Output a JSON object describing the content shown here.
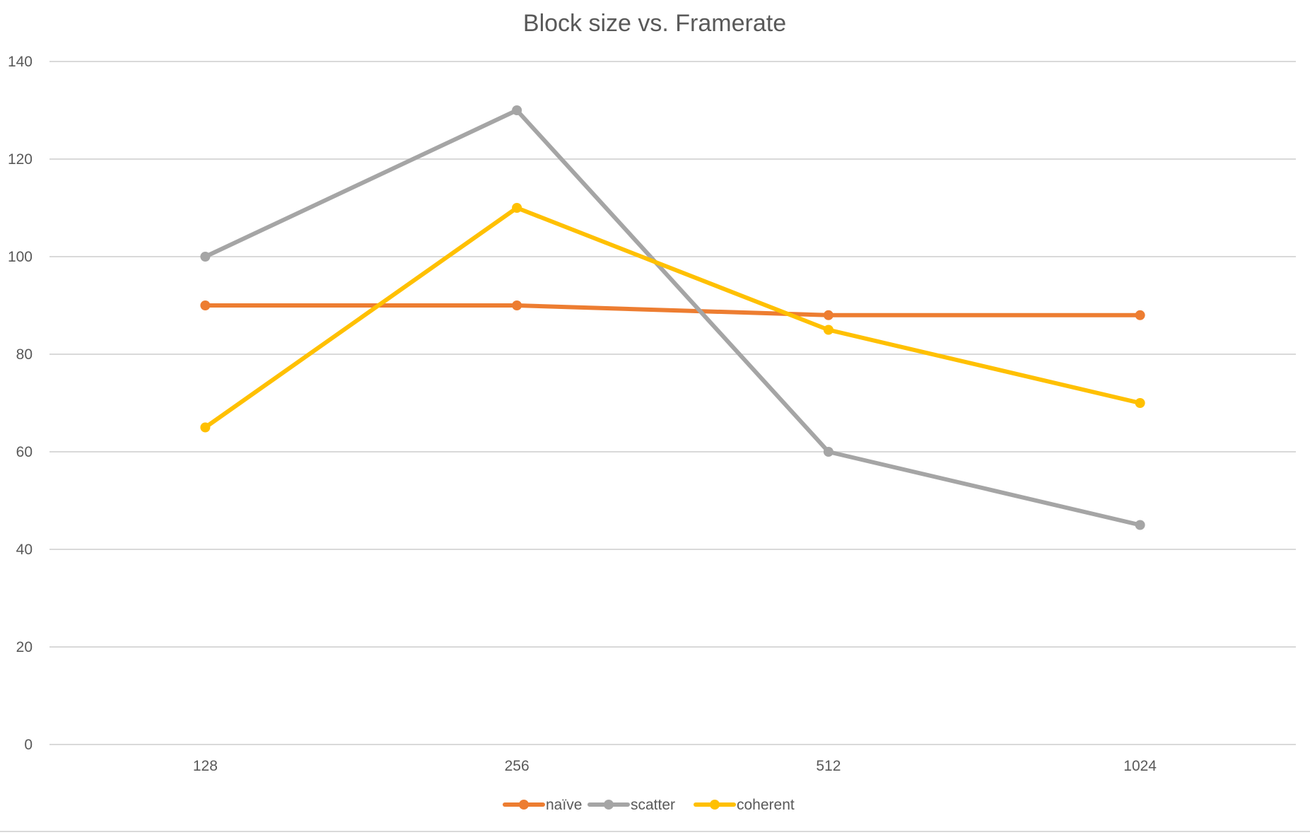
{
  "chart_data": {
    "type": "line",
    "title": "Block size vs. Framerate",
    "xlabel": "",
    "ylabel": "",
    "categories": [
      "128",
      "256",
      "512",
      "1024"
    ],
    "ylim": [
      0,
      140
    ],
    "yticks": [
      "0",
      "20",
      "40",
      "60",
      "80",
      "100",
      "120",
      "140"
    ],
    "grid": true,
    "legend_position": "bottom",
    "series": [
      {
        "name": "naïve",
        "color": "#ED7D31",
        "values": [
          90,
          90,
          88,
          88
        ]
      },
      {
        "name": "scatter",
        "color": "#A5A5A5",
        "values": [
          100,
          130,
          60,
          45
        ]
      },
      {
        "name": "coherent",
        "color": "#FFC000",
        "values": [
          65,
          110,
          85,
          70
        ]
      }
    ]
  }
}
